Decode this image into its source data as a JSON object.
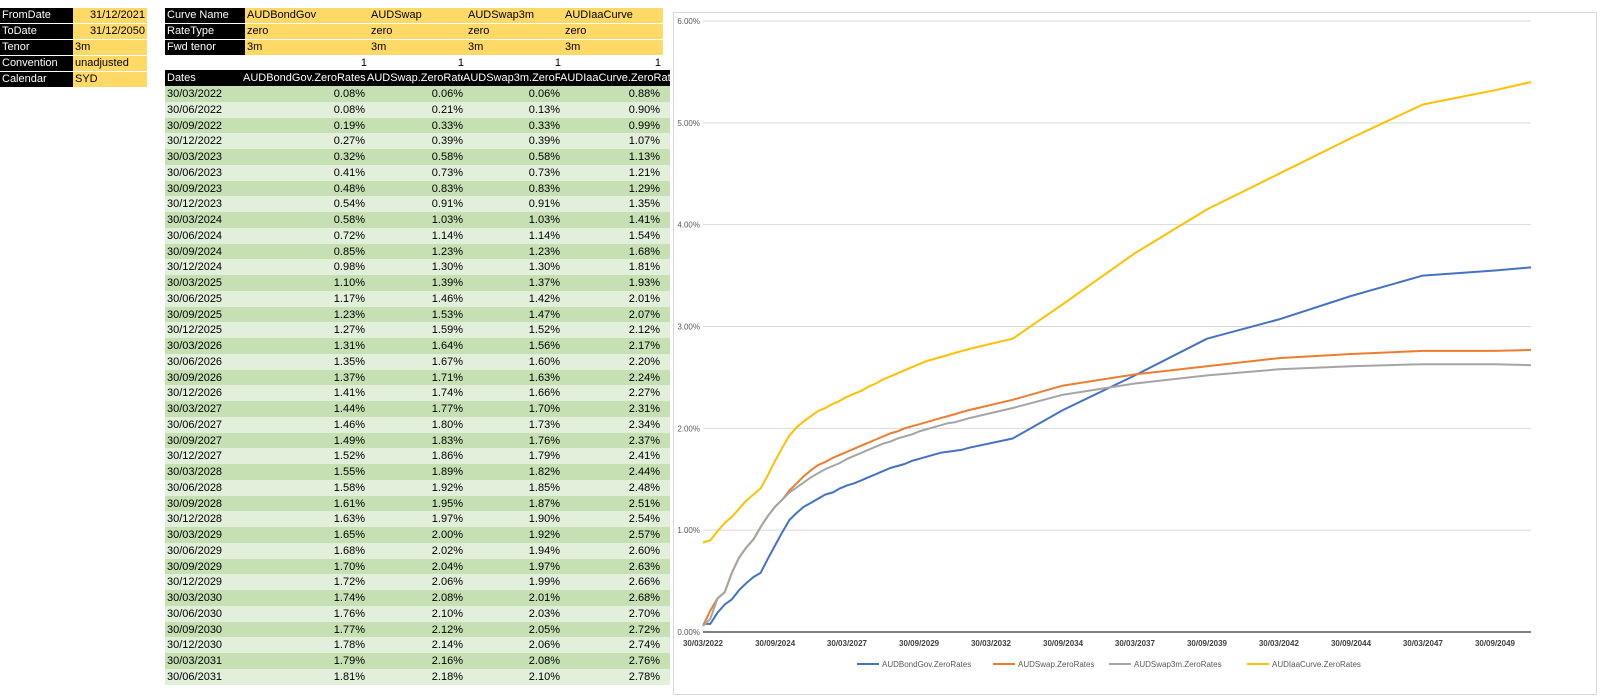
{
  "params": [
    {
      "label": "FromDate",
      "value": "31/12/2021",
      "align": "right"
    },
    {
      "label": "ToDate",
      "value": "31/12/2050",
      "align": "right"
    },
    {
      "label": "Tenor",
      "value": "3m",
      "align": "left"
    },
    {
      "label": "Convention",
      "value": "unadjusted",
      "align": "left"
    },
    {
      "label": "Calendar",
      "value": "SYD",
      "align": "left"
    }
  ],
  "curve_config": {
    "row_labels": [
      "Curve Name",
      "RateType",
      "Fwd tenor"
    ],
    "columns": [
      {
        "name": "AUDBondGov",
        "rate_type": "zero",
        "fwd_tenor": "3m",
        "flag": "1"
      },
      {
        "name": "AUDSwap",
        "rate_type": "zero",
        "fwd_tenor": "3m",
        "flag": "1"
      },
      {
        "name": "AUDSwap3m",
        "rate_type": "zero",
        "fwd_tenor": "3m",
        "flag": "1"
      },
      {
        "name": "AUDIaaCurve",
        "rate_type": "zero",
        "fwd_tenor": "3m",
        "flag": "1"
      }
    ]
  },
  "table": {
    "headers": [
      "Dates",
      "AUDBondGov.ZeroRates",
      "AUDSwap.ZeroRates",
      "AUDSwap3m.ZeroRates",
      "AUDIaaCurve.ZeroRates"
    ],
    "rows": [
      [
        "30/03/2022",
        "0.08%",
        "0.06%",
        "0.06%",
        "0.88%"
      ],
      [
        "30/06/2022",
        "0.08%",
        "0.21%",
        "0.13%",
        "0.90%"
      ],
      [
        "30/09/2022",
        "0.19%",
        "0.33%",
        "0.33%",
        "0.99%"
      ],
      [
        "30/12/2022",
        "0.27%",
        "0.39%",
        "0.39%",
        "1.07%"
      ],
      [
        "30/03/2023",
        "0.32%",
        "0.58%",
        "0.58%",
        "1.13%"
      ],
      [
        "30/06/2023",
        "0.41%",
        "0.73%",
        "0.73%",
        "1.21%"
      ],
      [
        "30/09/2023",
        "0.48%",
        "0.83%",
        "0.83%",
        "1.29%"
      ],
      [
        "30/12/2023",
        "0.54%",
        "0.91%",
        "0.91%",
        "1.35%"
      ],
      [
        "30/03/2024",
        "0.58%",
        "1.03%",
        "1.03%",
        "1.41%"
      ],
      [
        "30/06/2024",
        "0.72%",
        "1.14%",
        "1.14%",
        "1.54%"
      ],
      [
        "30/09/2024",
        "0.85%",
        "1.23%",
        "1.23%",
        "1.68%"
      ],
      [
        "30/12/2024",
        "0.98%",
        "1.30%",
        "1.30%",
        "1.81%"
      ],
      [
        "30/03/2025",
        "1.10%",
        "1.39%",
        "1.37%",
        "1.93%"
      ],
      [
        "30/06/2025",
        "1.17%",
        "1.46%",
        "1.42%",
        "2.01%"
      ],
      [
        "30/09/2025",
        "1.23%",
        "1.53%",
        "1.47%",
        "2.07%"
      ],
      [
        "30/12/2025",
        "1.27%",
        "1.59%",
        "1.52%",
        "2.12%"
      ],
      [
        "30/03/2026",
        "1.31%",
        "1.64%",
        "1.56%",
        "2.17%"
      ],
      [
        "30/06/2026",
        "1.35%",
        "1.67%",
        "1.60%",
        "2.20%"
      ],
      [
        "30/09/2026",
        "1.37%",
        "1.71%",
        "1.63%",
        "2.24%"
      ],
      [
        "30/12/2026",
        "1.41%",
        "1.74%",
        "1.66%",
        "2.27%"
      ],
      [
        "30/03/2027",
        "1.44%",
        "1.77%",
        "1.70%",
        "2.31%"
      ],
      [
        "30/06/2027",
        "1.46%",
        "1.80%",
        "1.73%",
        "2.34%"
      ],
      [
        "30/09/2027",
        "1.49%",
        "1.83%",
        "1.76%",
        "2.37%"
      ],
      [
        "30/12/2027",
        "1.52%",
        "1.86%",
        "1.79%",
        "2.41%"
      ],
      [
        "30/03/2028",
        "1.55%",
        "1.89%",
        "1.82%",
        "2.44%"
      ],
      [
        "30/06/2028",
        "1.58%",
        "1.92%",
        "1.85%",
        "2.48%"
      ],
      [
        "30/09/2028",
        "1.61%",
        "1.95%",
        "1.87%",
        "2.51%"
      ],
      [
        "30/12/2028",
        "1.63%",
        "1.97%",
        "1.90%",
        "2.54%"
      ],
      [
        "30/03/2029",
        "1.65%",
        "2.00%",
        "1.92%",
        "2.57%"
      ],
      [
        "30/06/2029",
        "1.68%",
        "2.02%",
        "1.94%",
        "2.60%"
      ],
      [
        "30/09/2029",
        "1.70%",
        "2.04%",
        "1.97%",
        "2.63%"
      ],
      [
        "30/12/2029",
        "1.72%",
        "2.06%",
        "1.99%",
        "2.66%"
      ],
      [
        "30/03/2030",
        "1.74%",
        "2.08%",
        "2.01%",
        "2.68%"
      ],
      [
        "30/06/2030",
        "1.76%",
        "2.10%",
        "2.03%",
        "2.70%"
      ],
      [
        "30/09/2030",
        "1.77%",
        "2.12%",
        "2.05%",
        "2.72%"
      ],
      [
        "30/12/2030",
        "1.78%",
        "2.14%",
        "2.06%",
        "2.74%"
      ],
      [
        "30/03/2031",
        "1.79%",
        "2.16%",
        "2.08%",
        "2.76%"
      ],
      [
        "30/06/2031",
        "1.81%",
        "2.18%",
        "2.10%",
        "2.78%"
      ]
    ]
  },
  "chart_data": {
    "type": "line",
    "ylim": [
      0,
      6
    ],
    "y_ticks": [
      "0.00%",
      "1.00%",
      "2.00%",
      "3.00%",
      "4.00%",
      "5.00%",
      "6.00%"
    ],
    "x_ticks": [
      "30/03/2022",
      "30/09/2024",
      "30/03/2027",
      "30/09/2029",
      "30/03/2032",
      "30/09/2034",
      "30/03/2037",
      "30/09/2039",
      "30/03/2042",
      "30/09/2044",
      "30/03/2047",
      "30/09/2049"
    ],
    "x_range": [
      "30/03/2022",
      "31/12/2050"
    ],
    "grid": true,
    "legend": "bottom",
    "x": [
      "30/03/2022",
      "30/06/2022",
      "30/09/2022",
      "30/12/2022",
      "30/03/2023",
      "30/06/2023",
      "30/09/2023",
      "30/12/2023",
      "30/03/2024",
      "30/06/2024",
      "30/09/2024",
      "30/12/2024",
      "30/03/2025",
      "30/06/2025",
      "30/09/2025",
      "30/12/2025",
      "30/03/2026",
      "30/06/2026",
      "30/09/2026",
      "30/12/2026",
      "30/03/2027",
      "30/06/2027",
      "30/09/2027",
      "30/12/2027",
      "30/03/2028",
      "30/06/2028",
      "30/09/2028",
      "30/12/2028",
      "30/03/2029",
      "30/06/2029",
      "30/09/2029",
      "30/12/2029",
      "30/03/2030",
      "30/06/2030",
      "30/09/2030",
      "30/12/2030",
      "30/03/2031",
      "30/06/2031",
      "31/12/2032",
      "30/09/2034",
      "30/03/2037",
      "30/09/2039",
      "30/03/2042",
      "30/09/2044",
      "30/03/2047",
      "30/09/2049",
      "31/12/2050"
    ],
    "series": [
      {
        "name": "AUDBondGov.ZeroRates",
        "color": "#4472c4",
        "values": [
          0.08,
          0.08,
          0.19,
          0.27,
          0.32,
          0.41,
          0.48,
          0.54,
          0.58,
          0.72,
          0.85,
          0.98,
          1.1,
          1.17,
          1.23,
          1.27,
          1.31,
          1.35,
          1.37,
          1.41,
          1.44,
          1.46,
          1.49,
          1.52,
          1.55,
          1.58,
          1.61,
          1.63,
          1.65,
          1.68,
          1.7,
          1.72,
          1.74,
          1.76,
          1.77,
          1.78,
          1.79,
          1.81,
          1.9,
          2.18,
          2.52,
          2.88,
          3.07,
          3.3,
          3.5,
          3.55,
          3.58
        ]
      },
      {
        "name": "AUDSwap.ZeroRates",
        "color": "#ed7d31",
        "values": [
          0.06,
          0.21,
          0.33,
          0.39,
          0.58,
          0.73,
          0.83,
          0.91,
          1.03,
          1.14,
          1.23,
          1.3,
          1.39,
          1.46,
          1.53,
          1.59,
          1.64,
          1.67,
          1.71,
          1.74,
          1.77,
          1.8,
          1.83,
          1.86,
          1.89,
          1.92,
          1.95,
          1.97,
          2.0,
          2.02,
          2.04,
          2.06,
          2.08,
          2.1,
          2.12,
          2.14,
          2.16,
          2.18,
          2.28,
          2.42,
          2.53,
          2.61,
          2.69,
          2.73,
          2.76,
          2.76,
          2.77
        ]
      },
      {
        "name": "AUDSwap3m.ZeroRates",
        "color": "#a5a5a5",
        "values": [
          0.06,
          0.13,
          0.33,
          0.39,
          0.58,
          0.73,
          0.83,
          0.91,
          1.03,
          1.14,
          1.23,
          1.3,
          1.37,
          1.42,
          1.47,
          1.52,
          1.56,
          1.6,
          1.63,
          1.66,
          1.7,
          1.73,
          1.76,
          1.79,
          1.82,
          1.85,
          1.87,
          1.9,
          1.92,
          1.94,
          1.97,
          1.99,
          2.01,
          2.03,
          2.05,
          2.06,
          2.08,
          2.1,
          2.2,
          2.33,
          2.44,
          2.52,
          2.58,
          2.61,
          2.63,
          2.63,
          2.62
        ]
      },
      {
        "name": "AUDIaaCurve.ZeroRates",
        "color": "#ffc000",
        "values": [
          0.88,
          0.9,
          0.99,
          1.07,
          1.13,
          1.21,
          1.29,
          1.35,
          1.41,
          1.54,
          1.68,
          1.81,
          1.93,
          2.01,
          2.07,
          2.12,
          2.17,
          2.2,
          2.24,
          2.27,
          2.31,
          2.34,
          2.37,
          2.41,
          2.44,
          2.48,
          2.51,
          2.54,
          2.57,
          2.6,
          2.63,
          2.66,
          2.68,
          2.7,
          2.72,
          2.74,
          2.76,
          2.78,
          2.88,
          3.22,
          3.72,
          4.15,
          4.5,
          4.85,
          5.18,
          5.32,
          5.4
        ]
      }
    ]
  }
}
